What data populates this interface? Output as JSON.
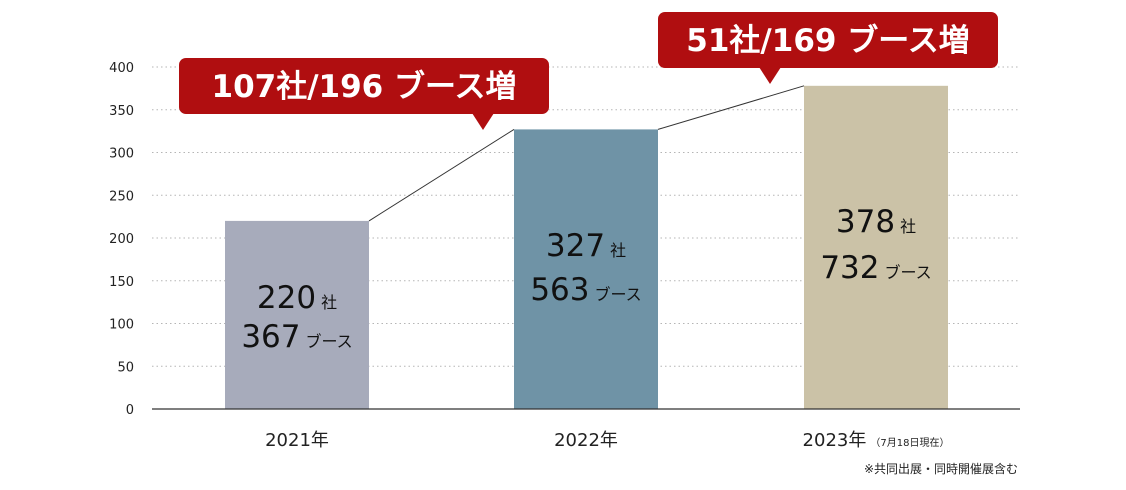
{
  "chart_data": {
    "type": "bar",
    "categories": [
      "2021年",
      "2022年",
      "2023年"
    ],
    "category_notes": [
      "",
      "",
      "（7月18日現在）"
    ],
    "series": [
      {
        "values": [
          220,
          327,
          378
        ]
      }
    ],
    "booths": [
      367,
      563,
      732
    ],
    "unit_company": "社",
    "unit_booth": "ブース",
    "yticks": [
      0,
      50,
      100,
      150,
      200,
      250,
      300,
      350,
      400
    ],
    "ylim": [
      0,
      400
    ],
    "grid": "dotted horizontal",
    "legend": "none",
    "colors": [
      "#a7abbb",
      "#6f93a6",
      "#cbc2a7"
    ],
    "callouts": [
      {
        "text": "107社/196 ブース増",
        "target_index": 1
      },
      {
        "text": "51社/169 ブース増",
        "target_index": 2
      }
    ],
    "callout_color": "#b00e10",
    "footnote": "※共同出展・同時開催展含む"
  }
}
